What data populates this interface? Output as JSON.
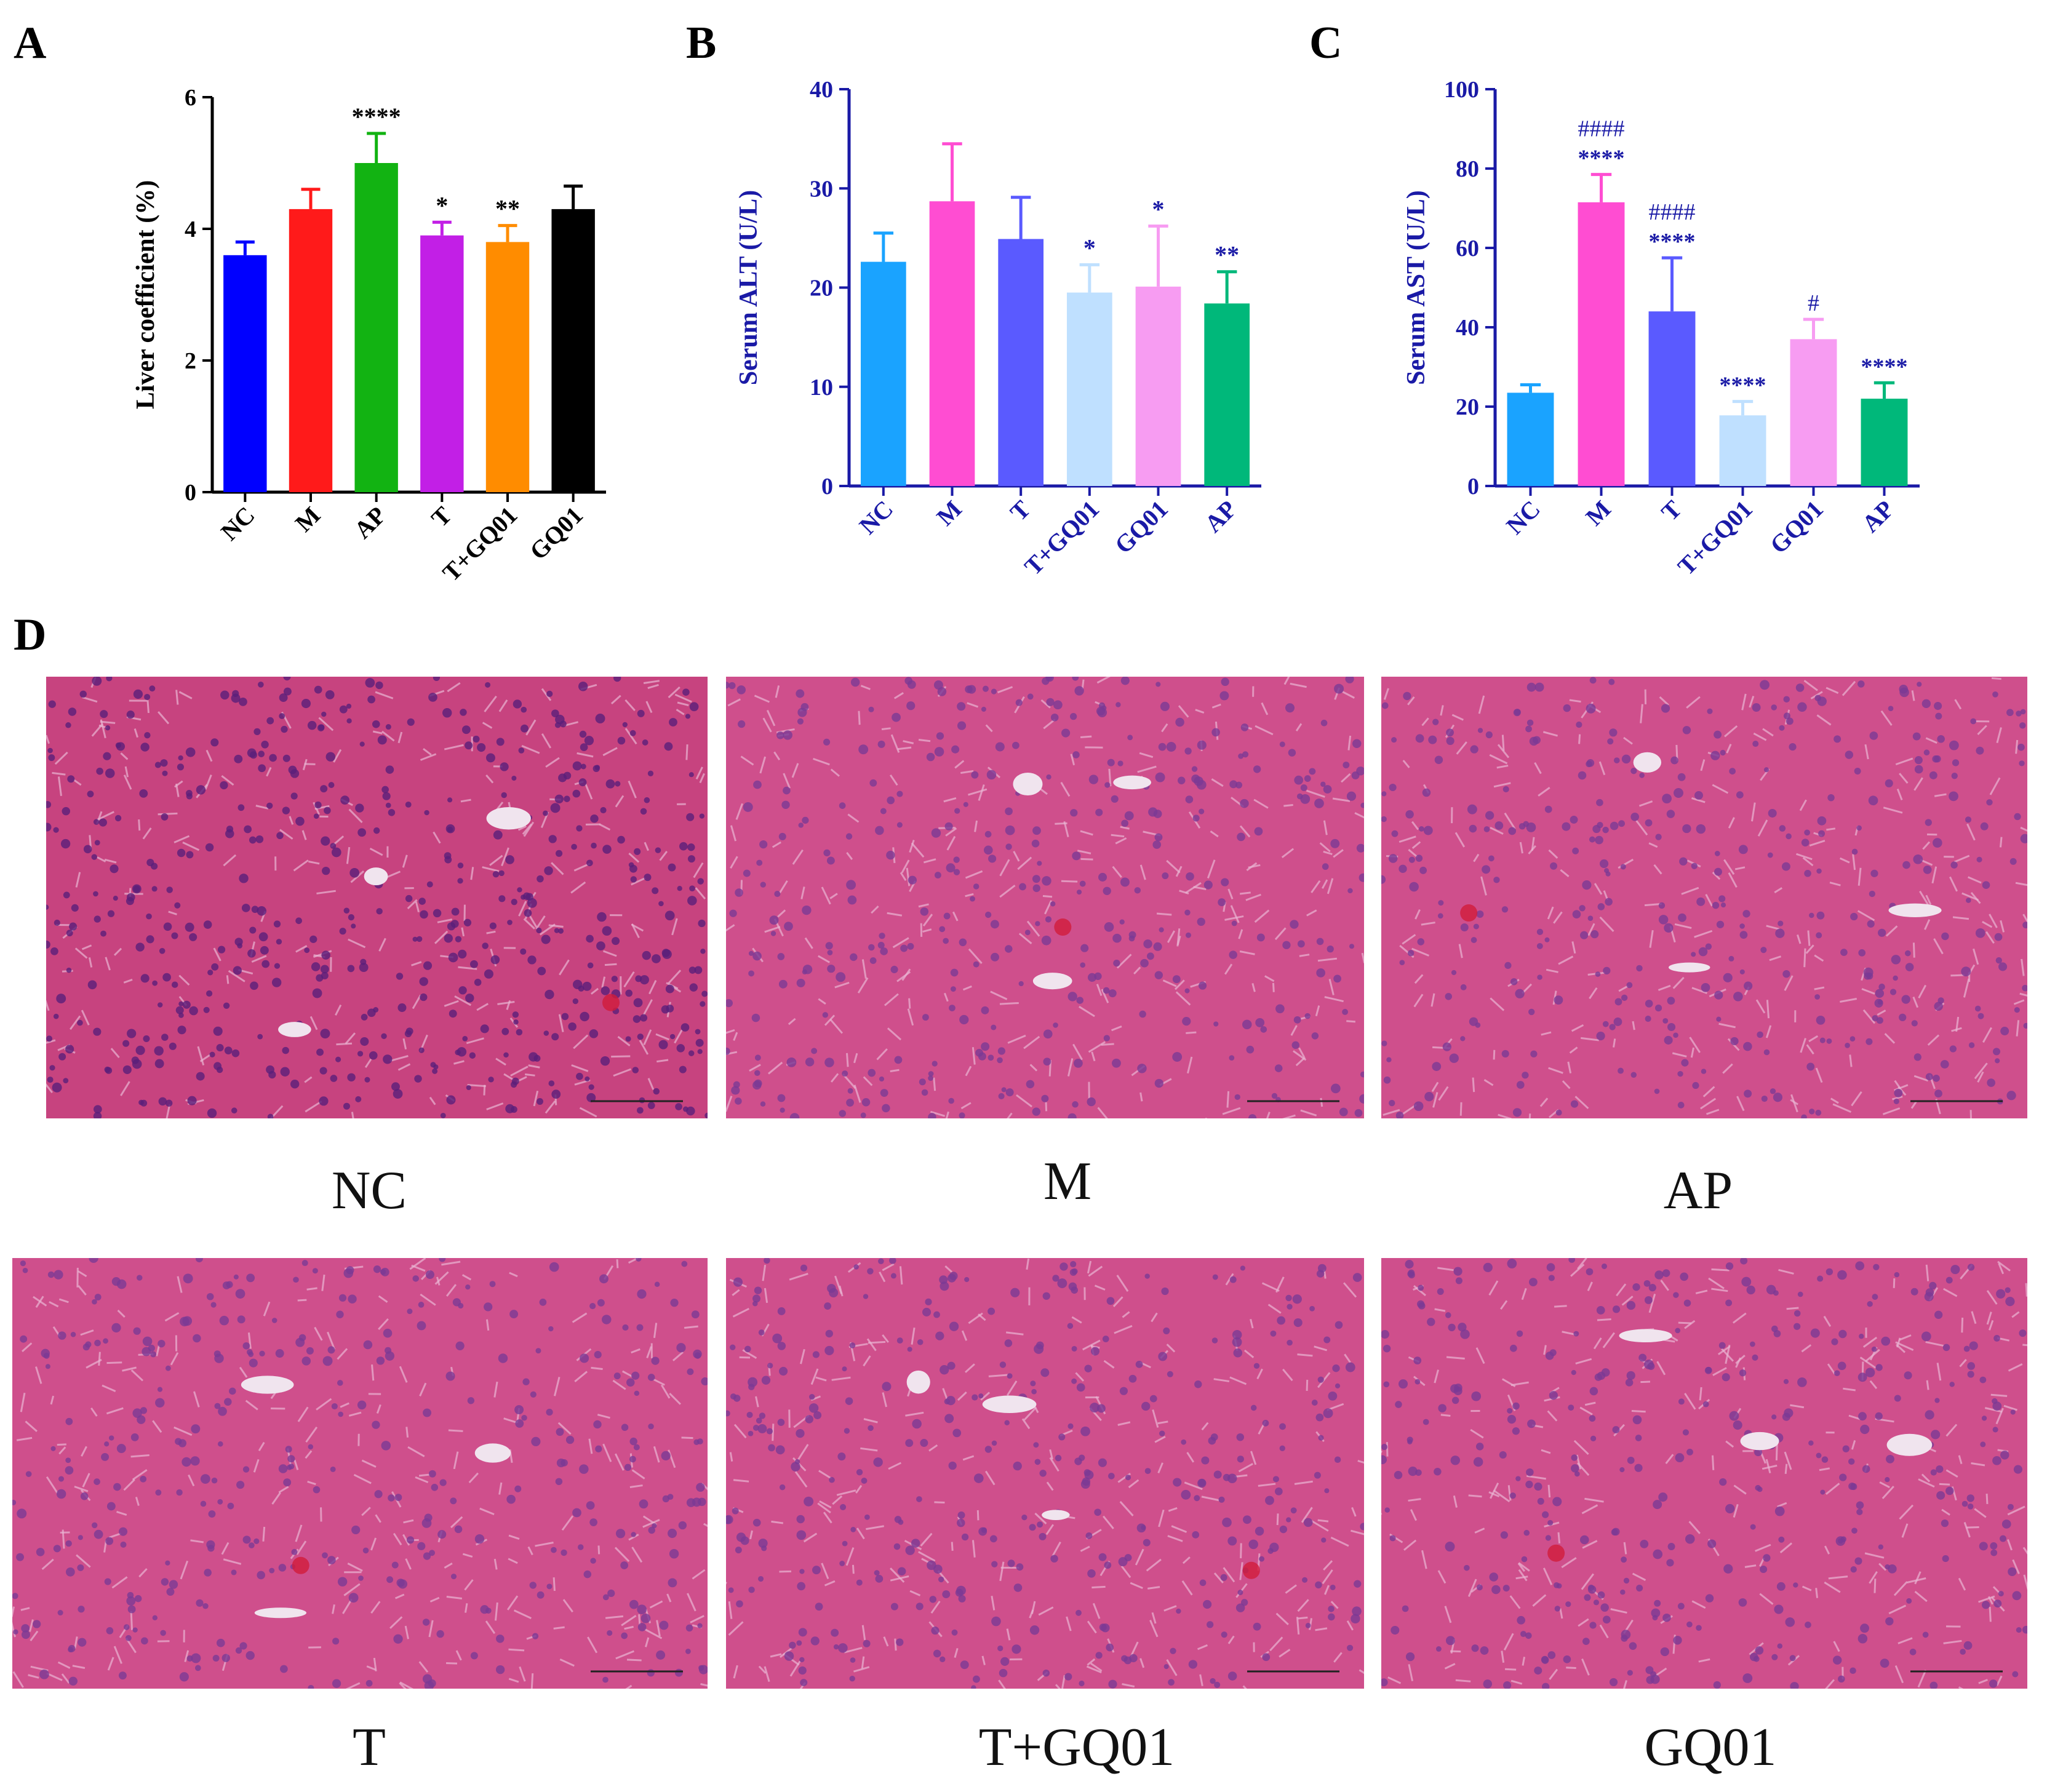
{
  "panels": {
    "a_letter": "A",
    "b_letter": "B",
    "c_letter": "C",
    "d_letter": "D"
  },
  "chart_data": [
    {
      "id": "A",
      "type": "bar",
      "ylabel": "Liver coefficient (%)",
      "ylim": [
        0,
        6
      ],
      "yticks": [
        0,
        2,
        4,
        6
      ],
      "categories": [
        "NC",
        "M",
        "AP",
        "T",
        "T+GQ01",
        "GQ01"
      ],
      "values": [
        3.6,
        4.3,
        5.0,
        3.9,
        3.8,
        4.3
      ],
      "errors": [
        0.2,
        0.3,
        0.45,
        0.2,
        0.25,
        0.35
      ],
      "sig": [
        "",
        "",
        "****",
        "*",
        "**",
        ""
      ],
      "sig2": [
        "",
        "",
        "",
        "",
        "",
        ""
      ],
      "colors": [
        "#0000ff",
        "#ff1a1a",
        "#12b312",
        "#c21fe6",
        "#ff8c00",
        "#000000"
      ],
      "axis_color": "#000000",
      "label_color": "#000000"
    },
    {
      "id": "B",
      "type": "bar",
      "ylabel": "Serum ALT (U/L)",
      "ylim": [
        0,
        40
      ],
      "yticks": [
        0,
        10,
        20,
        30,
        40
      ],
      "categories": [
        "NC",
        "M",
        "T",
        "T+GQ01",
        "GQ01",
        "AP"
      ],
      "values": [
        22.6,
        28.7,
        24.9,
        19.5,
        20.1,
        18.4
      ],
      "errors": [
        2.9,
        5.8,
        4.2,
        2.8,
        6.1,
        3.2
      ],
      "sig": [
        "",
        "",
        "",
        "*",
        "*",
        "**"
      ],
      "sig2": [
        "",
        "",
        "",
        "",
        "",
        ""
      ],
      "colors": [
        "#1aa3ff",
        "#ff4dd2",
        "#5a5aff",
        "#bfe0ff",
        "#f79cf2",
        "#00b87a"
      ],
      "axis_color": "#1a1aa6",
      "label_color": "#1a1aa6"
    },
    {
      "id": "C",
      "type": "bar",
      "ylabel": "Serum AST (U/L)",
      "ylim": [
        0,
        100
      ],
      "yticks": [
        0,
        20,
        40,
        60,
        80,
        100
      ],
      "categories": [
        "NC",
        "M",
        "T",
        "T+GQ01",
        "GQ01",
        "AP"
      ],
      "values": [
        23.5,
        71.5,
        44.0,
        17.8,
        37.0,
        22.0
      ],
      "errors": [
        2.0,
        7.0,
        13.5,
        3.5,
        5.0,
        4.0
      ],
      "sig": [
        "",
        "****",
        "****",
        "****",
        "",
        "****"
      ],
      "sig2": [
        "",
        "####",
        "####",
        "",
        "#",
        ""
      ],
      "colors": [
        "#1aa3ff",
        "#ff4dd2",
        "#5a5aff",
        "#bfe0ff",
        "#f79cf2",
        "#00b87a"
      ],
      "axis_color": "#1a1aa6",
      "label_color": "#1a1aa6"
    }
  ],
  "histology": [
    {
      "label": "NC"
    },
    {
      "label": "M"
    },
    {
      "label": "AP"
    },
    {
      "label": "T"
    },
    {
      "label": "T+GQ01"
    },
    {
      "label": "GQ01"
    }
  ]
}
